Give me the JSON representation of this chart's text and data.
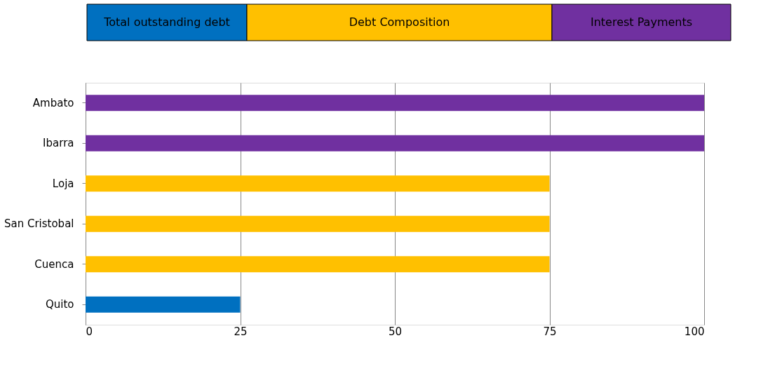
{
  "chart_data": {
    "type": "bar",
    "orientation": "horizontal",
    "categories": [
      "Ambato",
      "Ibarra",
      "Loja",
      "San Cristobal",
      "Cuenca",
      "Quito"
    ],
    "series": [
      {
        "name": "Total outstanding debt",
        "color": "#0070c0",
        "values": [
          null,
          null,
          null,
          null,
          null,
          25
        ]
      },
      {
        "name": "Debt Composition",
        "color": "#ffc000",
        "values": [
          null,
          null,
          75,
          75,
          75,
          null
        ]
      },
      {
        "name": "Interest Payments",
        "color": "#7030a0",
        "values": [
          100,
          100,
          null,
          null,
          null,
          null
        ]
      }
    ],
    "xlim": [
      0,
      100
    ],
    "xticks": [
      0,
      25,
      50,
      75,
      100
    ],
    "grid": "x",
    "legend": "top"
  }
}
